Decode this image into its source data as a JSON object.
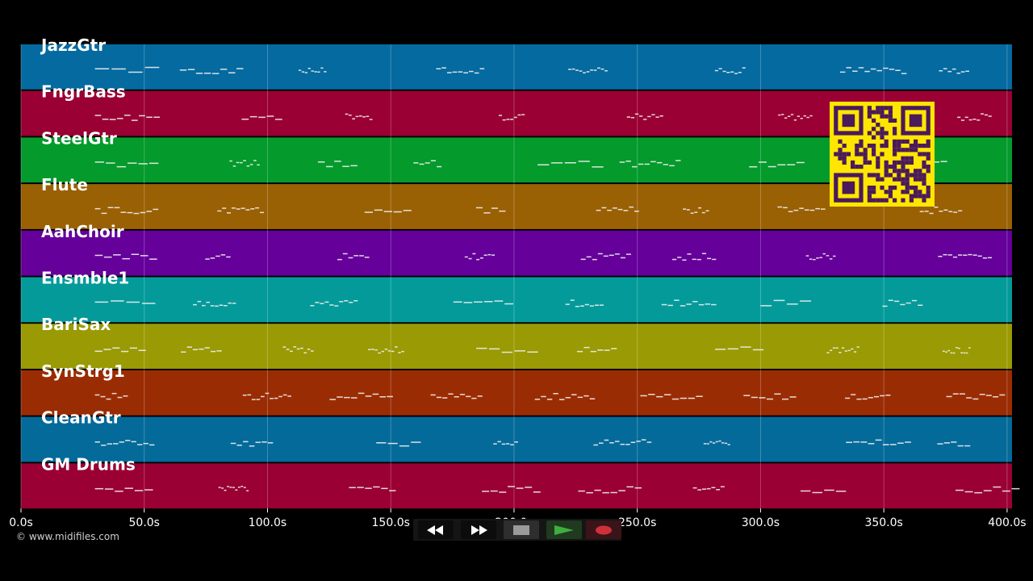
{
  "tracks": [
    {
      "name": "JazzGtr",
      "color": "#046aa0"
    },
    {
      "name": "FngrBass",
      "color": "#9a0033"
    },
    {
      "name": "SteelGtr",
      "color": "#049a2c"
    },
    {
      "name": "Flute",
      "color": "#9a6004"
    },
    {
      "name": "AahChoir",
      "color": "#65009a"
    },
    {
      "name": "Ensmble1",
      "color": "#049a9a"
    },
    {
      "name": "BariSax",
      "color": "#9a9a04"
    },
    {
      "name": "SynStrg1",
      "color": "#9a2c04"
    },
    {
      "name": "CleanGtr",
      "color": "#046a9a"
    },
    {
      "name": "GM Drums",
      "color": "#9a0033"
    }
  ],
  "timeline": {
    "ticks": [
      "0.0s",
      "50.0s",
      "100.0s",
      "150.0s",
      "200.0s",
      "250.0s",
      "300.0s",
      "350.0s",
      "400.0s"
    ],
    "tick_values": [
      0,
      50,
      100,
      150,
      200,
      250,
      300,
      350,
      400
    ],
    "range": [
      0,
      402
    ]
  },
  "copyright": "© www.midifiles.com",
  "transport": {
    "rewind_icon": "rewind-icon",
    "fast_forward_icon": "fast-forward-icon",
    "stop_icon": "stop-icon",
    "play_icon": "play-icon",
    "record_icon": "record-icon",
    "play_color": "#3fae3f",
    "record_color": "#d0303a"
  },
  "qr_color": "#ffe600",
  "qr_dark": "#4a1a5a"
}
